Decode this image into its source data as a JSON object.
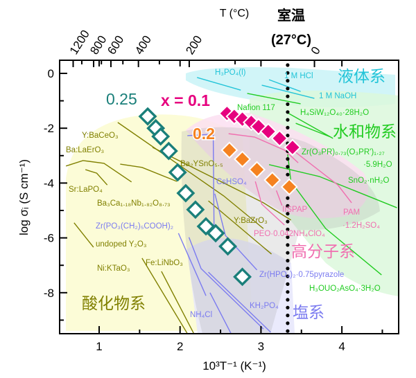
{
  "chart_data": {
    "type": "scatter",
    "title": "",
    "xlabel": "10³T⁻¹ (K⁻¹)",
    "ylabel": "log σᵢ (S cm⁻¹)",
    "top_xlabel": "T (°C)",
    "xlim": [
      0.5,
      4.77
    ],
    "ylim": [
      -9.5,
      0.48
    ],
    "grid": false,
    "xticks": [
      {
        "value": 1,
        "label": "1"
      },
      {
        "value": 2,
        "label": "2"
      },
      {
        "value": 3,
        "label": "3"
      },
      {
        "value": 4,
        "label": "4"
      }
    ],
    "xminor": [
      1.5,
      2.5,
      3.5,
      4.5
    ],
    "yticks": [
      {
        "value": 0,
        "label": "0"
      },
      {
        "value": -2,
        "label": "-2"
      },
      {
        "value": -4,
        "label": "-4"
      },
      {
        "value": -6,
        "label": "-6"
      },
      {
        "value": -8,
        "label": "-8"
      }
    ],
    "yminor": [
      -1,
      -3,
      -5,
      -7,
      -9
    ],
    "top_axis": {
      "ticks": [
        {
          "T": 1200,
          "label": "1200"
        },
        {
          "T": 800,
          "label": "800"
        },
        {
          "T": 600,
          "label": "600"
        },
        {
          "T": 400,
          "label": "400"
        },
        {
          "T": 200,
          "label": "200"
        },
        {
          "T": 0,
          "label": "0"
        }
      ],
      "minor_T": [
        1000,
        700,
        500,
        300,
        100
      ]
    },
    "room_temperature": {
      "label": "室温",
      "sublabel": "(27°C)",
      "x": 3.33
    },
    "series": [
      {
        "name": "x = 0.1",
        "color": "#e6007e",
        "marker": "filled-diamond",
        "points": [
          [
            2.58,
            -1.46
          ],
          [
            2.67,
            -1.57
          ],
          [
            2.77,
            -1.67
          ],
          [
            2.88,
            -1.79
          ],
          [
            2.97,
            -1.94
          ],
          [
            3.09,
            -2.12
          ],
          [
            3.23,
            -2.37
          ],
          [
            3.39,
            -2.7
          ]
        ]
      },
      {
        "name": "0.2",
        "color": "#f58220",
        "marker": "filled-diamond",
        "points": [
          [
            2.61,
            -2.8
          ],
          [
            2.77,
            -3.13
          ],
          [
            2.95,
            -3.51
          ],
          [
            3.14,
            -3.89
          ],
          [
            3.35,
            -4.14
          ]
        ]
      },
      {
        "name": "0.25",
        "color": "#1a7f7a",
        "marker": "open-diamond",
        "points": [
          [
            1.6,
            -1.57
          ],
          [
            1.7,
            -2.0
          ],
          [
            1.76,
            -2.3
          ],
          [
            1.86,
            -2.83
          ],
          [
            1.97,
            -3.61
          ],
          [
            2.07,
            -4.37
          ],
          [
            2.19,
            -4.97
          ],
          [
            2.32,
            -5.58
          ],
          [
            2.44,
            -5.83
          ],
          [
            2.59,
            -6.31
          ],
          [
            2.77,
            -7.42
          ]
        ]
      }
    ],
    "regions": [
      {
        "label": "液体系",
        "color": "#22c4d8",
        "fill": "#c9f3f7"
      },
      {
        "label": "水和物系",
        "color": "#22cc22",
        "fill": "#dcf8dc"
      },
      {
        "label": "酸化物系",
        "color": "#808000",
        "fill": "#fbfbd0"
      },
      {
        "label": "塩系",
        "color": "#7b7bf0",
        "fill": "#e6e6fb"
      },
      {
        "label": "高分子系",
        "color": "#f06fb0",
        "fill": "#fbdff1"
      }
    ],
    "reference_lines": [
      {
        "label": "H₃PO₄(l)",
        "color": "#22c4d8",
        "segments": [
          [
            [
              2.21,
              -0.15
            ],
            [
              2.75,
              -0.61
            ]
          ]
        ]
      },
      {
        "label": "1 M HCl",
        "color": "#22c4d8",
        "segments": [
          [
            [
              3.1,
              -0.23
            ],
            [
              3.49,
              -0.66
            ]
          ]
        ]
      },
      {
        "label": "1 M NaOH",
        "color": "#22c4d8",
        "segments": [
          [
            [
              3.01,
              -0.43
            ],
            [
              3.66,
              -0.91
            ]
          ]
        ]
      },
      {
        "label": "Nafion 117",
        "color": "#22cc22",
        "segments": [
          [
            [
              2.83,
              -0.73
            ],
            [
              3.49,
              -1.11
            ]
          ]
        ]
      },
      {
        "label": "H₄SiW₁₂O₄₀·28H₂O",
        "color": "#22cc22",
        "segments": [
          [
            [
              3.33,
              -1.44
            ],
            [
              3.89,
              -2.37
            ]
          ],
          [
            [
              3.43,
              -1.82
            ],
            [
              3.86,
              -2.32
            ]
          ]
        ]
      },
      {
        "label": "Zr(O₃PR)₀.₇₃(O₃PR')₁.₂₇",
        "label2": "·5.9H₂O",
        "color": "#22cc22",
        "segments": [
          [
            [
              3.33,
              -2.95
            ],
            [
              3.37,
              -3.94
            ]
          ]
        ]
      },
      {
        "label": "SnO₂·nH₂O",
        "color": "#22cc22",
        "segments": [
          [
            [
              3.1,
              -3.33
            ],
            [
              3.72,
              -3.76
            ],
            [
              4.68,
              -4.9
            ]
          ]
        ]
      },
      {
        "label": "H₃OUO₂AsO₄·3H₂O",
        "color": "#22cc22",
        "segments": [
          [
            [
              3.37,
              -3.94
            ],
            [
              3.8,
              -5.66
            ],
            [
              4.49,
              -7.35
            ]
          ]
        ]
      },
      {
        "label": "Y:BaCeO₃",
        "color": "#808000",
        "segments": [
          [
            [
              1.23,
              -1.79
            ],
            [
              2.54,
              -4.47
            ],
            [
              3.03,
              -5.66
            ]
          ]
        ]
      },
      {
        "label": "Ba:LaErO₃",
        "color": "#808000",
        "segments": [
          [
            [
              0.59,
              -3.38
            ],
            [
              0.8,
              -3.18
            ],
            [
              1.06,
              -3.28
            ],
            [
              1.4,
              -3.96
            ]
          ]
        ]
      },
      {
        "label": "Sr:LaPO₄",
        "color": "#808000",
        "segments": [
          [
            [
              0.83,
              -3.51
            ],
            [
              0.97,
              -3.64
            ],
            [
              1.1,
              -4.07
            ]
          ]
        ]
      },
      {
        "label": "Ba₂YSnO₅.₅",
        "color": "#808000",
        "segments": [
          [
            [
              1.66,
              -2.7
            ],
            [
              3.03,
              -4.72
            ],
            [
              3.37,
              -5.35
            ]
          ]
        ]
      },
      {
        "label": "Ba₃Ca₁.₁₈Nb₁.₈₂O₈.₇₃",
        "color": "#808000",
        "segments": [
          [
            [
              1.26,
              -3.31
            ],
            [
              1.53,
              -3.43
            ],
            [
              1.96,
              -3.94
            ]
          ]
        ]
      },
      {
        "label": "Y:BaZrO₃",
        "color": "#808000",
        "segments": [
          [
            [
              2.35,
              -4.65
            ],
            [
              3.13,
              -6.59
            ]
          ]
        ]
      },
      {
        "label": "undoped Y₂O₃",
        "color": "#808000",
        "segments": [
          [
            [
              0.69,
              -5.45
            ],
            [
              0.93,
              -6.34
            ]
          ]
        ]
      },
      {
        "label": "Ni:KTaO₃",
        "color": "#808000",
        "segments": [
          [
            [
              1.53,
              -6.74
            ],
            [
              2.09,
              -9.49
            ]
          ]
        ]
      },
      {
        "label": "Fe:LiNbO₃",
        "color": "#808000",
        "segments": [
          [
            [
              1.77,
              -7.22
            ],
            [
              2.17,
              -9.49
            ]
          ]
        ]
      },
      {
        "label": "CsHSO₄",
        "color": "#7b7bf0",
        "segments": [
          [
            [
              2.09,
              -2.27
            ],
            [
              2.41,
              -2.22
            ],
            [
              2.42,
              -5.66
            ],
            [
              2.43,
              -6.04
            ]
          ]
        ]
      },
      {
        "label": "Zr(PO₃(CH₂)₅COOH)₂",
        "color": "#7b7bf0",
        "segments": [
          [
            [
              1.98,
              -5.83
            ],
            [
              2.32,
              -8.11
            ]
          ]
        ]
      },
      {
        "label": "Zr(HPO₄)₂·0.75pyrazole",
        "color": "#7b7bf0",
        "segments": [
          [
            [
              2.43,
              -4.39
            ],
            [
              2.56,
              -5.91
            ],
            [
              2.95,
              -7.17
            ]
          ]
        ]
      },
      {
        "label": "KH₂PO₄",
        "color": "#7b7bf0",
        "segments": [
          [
            [
              2.11,
              -5.98
            ],
            [
              2.26,
              -7.12
            ],
            [
              3.03,
              -9.32
            ]
          ],
          [
            [
              2.35,
              -7.25
            ],
            [
              3.12,
              -9.44
            ]
          ]
        ]
      },
      {
        "label": "NH₄Cl",
        "color": "#7b7bf0",
        "segments": [
          [
            [
              2.37,
              -8.0
            ],
            [
              2.63,
              -9.49
            ]
          ]
        ]
      },
      {
        "label": "IISPAP",
        "color": "#f06fb0",
        "segments": [
          [
            [
              2.6,
              -2.2
            ],
            [
              2.92,
              -2.32
            ],
            [
              3.29,
              -2.8
            ],
            [
              3.46,
              -3.26
            ]
          ],
          [
            [
              3.19,
              -4.27
            ],
            [
              3.26,
              -4.82
            ]
          ]
        ]
      },
      {
        "label": "PEO·0.042NH₄ClO₄",
        "color": "#f06fb0",
        "segments": [
          [
            [
              2.93,
              -3.94
            ],
            [
              3.01,
              -4.77
            ],
            [
              3.29,
              -5.53
            ]
          ]
        ]
      },
      {
        "label": "PAM",
        "label2": "·1.2H₂SO₄",
        "color": "#f06fb0",
        "segments": [
          [
            [
              3.43,
              -2.88
            ],
            [
              3.95,
              -4.07
            ],
            [
              4.12,
              -4.72
            ]
          ]
        ]
      }
    ]
  }
}
